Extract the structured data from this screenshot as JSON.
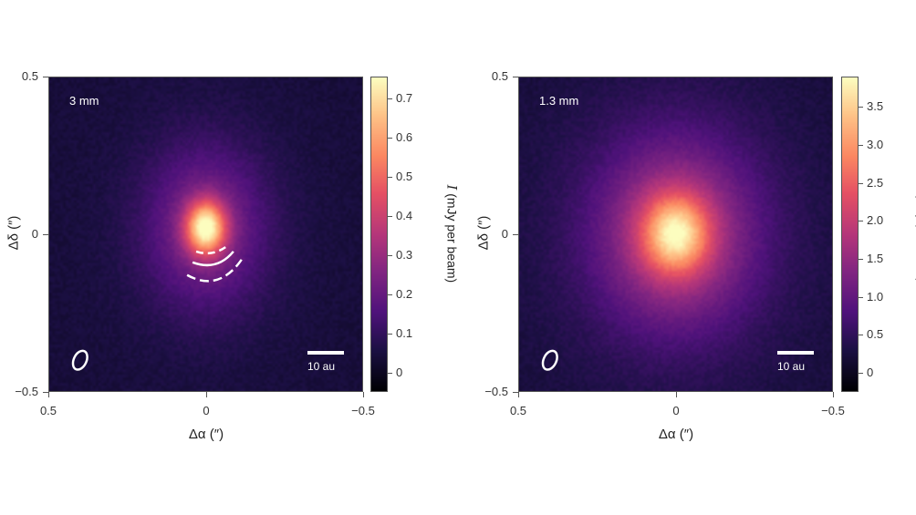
{
  "chart_data": [
    {
      "type": "heatmap",
      "panel_label": "3 mm",
      "xlabel": "Δα (″)",
      "ylabel": "Δδ (″)",
      "xlim": [
        0.5,
        -0.5
      ],
      "ylim": [
        -0.5,
        0.5
      ],
      "x_ticks": [
        "0.5",
        "0",
        "−0.5"
      ],
      "y_ticks": [
        "0.5",
        "0",
        "−0.5"
      ],
      "colormap": "magma",
      "colorbar": {
        "label_symbol": "I",
        "label_unit": "(mJy per beam)",
        "range": [
          -0.05,
          0.755
        ],
        "ticks": [
          0,
          0.1,
          0.2,
          0.3,
          0.4,
          0.5,
          0.6,
          0.7
        ],
        "tick_labels": [
          "0",
          "0.1",
          "0.2",
          "0.3",
          "0.4",
          "0.5",
          "0.6",
          "0.7"
        ]
      },
      "peak_value": 0.75,
      "scale_bar_label": "10 au",
      "annotations": [
        "beam ellipse",
        "dashed and solid white arcs south of centre"
      ]
    },
    {
      "type": "heatmap",
      "panel_label": "1.3 mm",
      "xlabel": "Δα (″)",
      "ylabel": "Δδ (″)",
      "xlim": [
        0.5,
        -0.5
      ],
      "ylim": [
        -0.5,
        0.5
      ],
      "x_ticks": [
        "0.5",
        "0",
        "−0.5"
      ],
      "y_ticks": [
        "0.5",
        "0",
        "−0.5"
      ],
      "colormap": "magma",
      "colorbar": {
        "label_symbol": "I",
        "label_unit": "(mJy per beam)",
        "range": [
          -0.25,
          3.9
        ],
        "ticks": [
          0,
          0.5,
          1.0,
          1.5,
          2.0,
          2.5,
          3.0,
          3.5
        ],
        "tick_labels": [
          "0",
          "0.5",
          "1.0",
          "1.5",
          "2.0",
          "2.5",
          "3.0",
          "3.5"
        ]
      },
      "peak_value": 3.9,
      "scale_bar_label": "10 au",
      "annotations": [
        "beam ellipse"
      ]
    }
  ]
}
